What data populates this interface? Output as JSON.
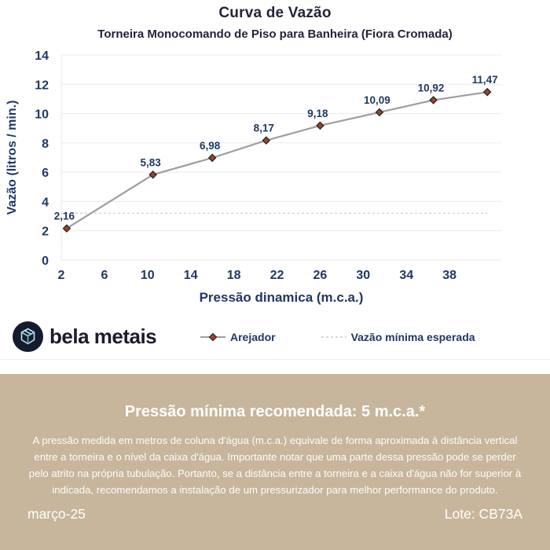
{
  "header": {
    "title": "Curva de Vazão",
    "subtitle": "Torneira Monocomando de Piso para Banheira (Fiora Cromada)"
  },
  "chart_data": {
    "type": "line",
    "title": "Curva de Vazão",
    "subtitle": "Torneira Monocomando de Piso para Banheira (Fiora Cromada)",
    "xlabel": "Pressão dinamica (m.c.a.)",
    "ylabel": "Vazão (litros / min.)",
    "xlim": [
      2,
      42.8
    ],
    "ylim": [
      0,
      14
    ],
    "x_ticks": [
      2,
      6,
      10,
      14,
      18,
      22,
      26,
      30,
      34,
      38
    ],
    "y_ticks": [
      0,
      2,
      4,
      6,
      8,
      10,
      12,
      14
    ],
    "grid": "horizontal",
    "legend_position": "bottom",
    "series": [
      {
        "name": "Arejador",
        "x": [
          2.5,
          10.5,
          16,
          21,
          26,
          31.5,
          36.5,
          41.5
        ],
        "y": [
          2.16,
          5.83,
          6.98,
          8.17,
          9.18,
          10.09,
          10.92,
          11.47
        ],
        "point_labels": [
          "2,16",
          "5,83",
          "6,98",
          "8,17",
          "9,18",
          "10,09",
          "10,92",
          "11,47"
        ],
        "line_color": "#9e9e9e",
        "marker": "diamond",
        "marker_fill": "#9c4526",
        "marker_stroke": "#262626"
      },
      {
        "name": "Vazão mínima esperada",
        "style": "dashed-hline",
        "y_value": 3.2,
        "x_start": 2,
        "x_end": 41.5,
        "color": "#cdd0d4"
      }
    ],
    "legend": [
      "Arejador",
      "Vazão mínima esperada"
    ],
    "colors": {
      "axis_text": "#1f3864",
      "data_label": "#1f3864",
      "gridline": "#ebe9e9"
    }
  },
  "logo": {
    "name": "bela metais"
  },
  "info": {
    "heading": "Pressão mínima recomendada: 5 m.c.a.*",
    "body": "A pressão medida em metros de coluna d'água (m.c.a.) equivale de forma aproximada à distância vertical entre a torneira e o nível da caixa d'água. Importante notar que uma parte dessa pressão pode se perder pelo atrito na própria tubulação. Portanto, se a distância entre a torneira e a caixa d'água não for superior à indicada, recomendamos a instalação de um pressurizador para melhor performance do produto.",
    "date": "março-25",
    "lot": "Lote: CB73A",
    "bg_color": "#c7b69c"
  }
}
